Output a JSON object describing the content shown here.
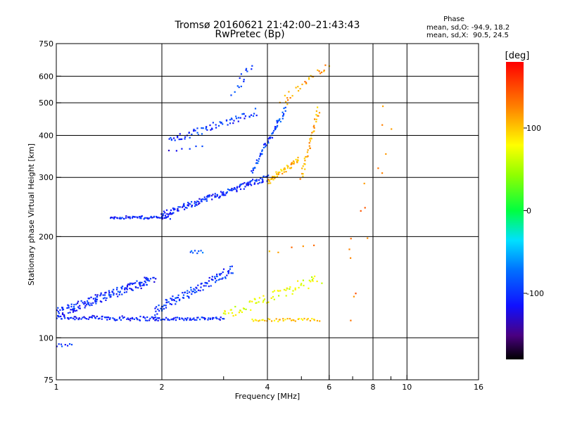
{
  "chart_data": {
    "type": "scatter",
    "title": "Tromsø 20160621 21:42:00–21:43:43",
    "subtitle": "RwPretec (Bp)",
    "xlabel": "Frequency [MHz]",
    "ylabel": "Stationary phase Virtual Height [km]",
    "x_scale": "log",
    "y_scale": "log",
    "xlim": [
      1,
      16
    ],
    "ylim": [
      75,
      750
    ],
    "grid": true,
    "x_ticks": [
      {
        "value": 1,
        "label": "1"
      },
      {
        "value": 2,
        "label": "2"
      },
      {
        "value": 4,
        "label": "4"
      },
      {
        "value": 6,
        "label": "6"
      },
      {
        "value": 8,
        "label": "8"
      },
      {
        "value": 10,
        "label": "10"
      },
      {
        "value": 16,
        "label": "16"
      }
    ],
    "x_minor_ticks": [
      3,
      5,
      7,
      9
    ],
    "y_ticks": [
      {
        "value": 75,
        "label": "75"
      },
      {
        "value": 100,
        "label": "100"
      },
      {
        "value": 200,
        "label": "200"
      },
      {
        "value": 300,
        "label": "300"
      },
      {
        "value": 400,
        "label": "400"
      },
      {
        "value": 500,
        "label": "500"
      },
      {
        "value": 600,
        "label": "600"
      },
      {
        "value": 750,
        "label": "750"
      }
    ],
    "stats": {
      "heading": "Phase",
      "line_o": "mean, sd,O: -94.9, 18.2",
      "line_x": "mean, sd,X:  90.5, 24.5"
    },
    "colorbar": {
      "label": "[deg]",
      "range": [
        -180,
        180
      ],
      "ticks": [
        {
          "value": 100,
          "label": "100"
        },
        {
          "value": 0,
          "label": "0"
        },
        {
          "value": -100,
          "label": "-100"
        }
      ]
    },
    "colors": {
      "o_mode": "#1e3cff",
      "x_mode": "#f0e020",
      "grid": "#000000"
    },
    "series": [
      {
        "segments": [
          {
            "f": [
              1.0,
              1.95
            ],
            "h": [
              115,
              114
            ],
            "n": 90,
            "j": 0.03,
            "deg": -110
          },
          {
            "f": [
              1.0,
              1.9
            ],
            "h": [
              118,
              150
            ],
            "n": 170,
            "j": 0.06,
            "deg": -105
          },
          {
            "f": [
              1.9,
              3.0
            ],
            "h": [
              114,
              114
            ],
            "n": 60,
            "j": 0.02,
            "deg": -105
          },
          {
            "f": [
              1.9,
              3.2
            ],
            "h": [
              120,
              160
            ],
            "n": 110,
            "j": 0.06,
            "deg": -100
          },
          {
            "f": [
              1.0,
              1.1
            ],
            "h": [
              95,
              95
            ],
            "n": 8,
            "j": 0.02,
            "deg": -100
          },
          {
            "f": [
              1.43,
              2.1
            ],
            "h": [
              228,
              228
            ],
            "n": 60,
            "j": 0.02,
            "deg": -110
          },
          {
            "f": [
              2.0,
              4.0
            ],
            "h": [
              232,
              300
            ],
            "n": 160,
            "j": 0.04,
            "deg": -105
          },
          {
            "f": [
              2.1,
              3.7
            ],
            "h": [
              385,
              470
            ],
            "n": 70,
            "j": 0.05,
            "deg": -100
          },
          {
            "f": [
              3.6,
              4.5
            ],
            "h": [
              310,
              480
            ],
            "n": 60,
            "j": 0.03,
            "deg": -95
          },
          {
            "f": [
              3.2,
              3.6
            ],
            "h": [
              540,
              640
            ],
            "n": 14,
            "j": 0.06,
            "deg": -95
          },
          {
            "f": [
              2.4,
              2.6
            ],
            "h": [
              180,
              180
            ],
            "n": 8,
            "j": 0.02,
            "deg": -85
          },
          {
            "f": [
              2.1,
              2.6
            ],
            "h": [
              360,
              370
            ],
            "n": 6,
            "j": 0.02,
            "deg": -110
          }
        ]
      },
      {
        "segments": [
          {
            "f": [
              3.0,
              5.6
            ],
            "h": [
              116,
              150
            ],
            "n": 70,
            "j": 0.07,
            "deg": 70
          },
          {
            "f": [
              3.6,
              5.6
            ],
            "h": [
              113,
              113
            ],
            "n": 40,
            "j": 0.02,
            "deg": 95
          },
          {
            "f": [
              4.0,
              4.9
            ],
            "h": [
              290,
              340
            ],
            "n": 50,
            "j": 0.04,
            "deg": 105
          },
          {
            "f": [
              5.0,
              5.6
            ],
            "h": [
              300,
              480
            ],
            "n": 40,
            "j": 0.03,
            "deg": 110
          },
          {
            "f": [
              4.4,
              5.9
            ],
            "h": [
              500,
              650
            ],
            "n": 30,
            "j": 0.06,
            "deg": 115
          },
          {
            "f": [
              6.6,
              8.9
            ],
            "h": [
              120,
              500
            ],
            "n": 16,
            "j": 0.2,
            "deg": 130
          },
          {
            "f": [
              4.0,
              5.5
            ],
            "h": [
              180,
              190
            ],
            "n": 5,
            "j": 0.05,
            "deg": 120
          }
        ]
      }
    ]
  }
}
